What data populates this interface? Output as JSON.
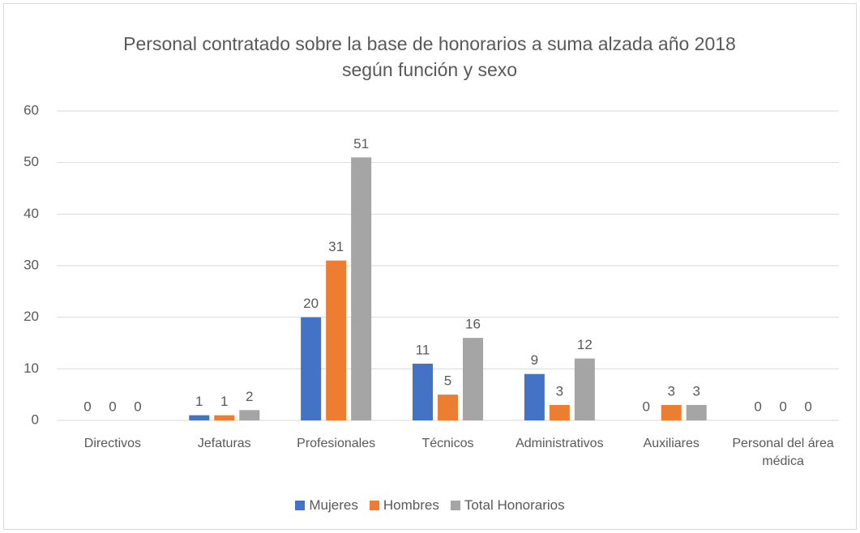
{
  "chart_data": {
    "type": "bar",
    "title": "Personal contratado sobre la base de honorarios a suma alzada año 2018 según función y sexo",
    "categories": [
      "Directivos",
      "Jefaturas",
      "Profesionales",
      "Técnicos",
      "Administrativos",
      "Auxiliares",
      "Personal del área médica"
    ],
    "series": [
      {
        "name": "Mujeres",
        "color": "#4472c4",
        "values": [
          0,
          1,
          20,
          11,
          9,
          0,
          0
        ]
      },
      {
        "name": "Hombres",
        "color": "#ed7d31",
        "values": [
          0,
          1,
          31,
          5,
          3,
          3,
          0
        ]
      },
      {
        "name": "Total Honorarios",
        "color": "#a5a5a5",
        "values": [
          0,
          2,
          51,
          16,
          12,
          3,
          0
        ]
      }
    ],
    "ylim": [
      0,
      60
    ],
    "yticks": [
      0,
      10,
      20,
      30,
      40,
      50,
      60
    ],
    "grid": true,
    "legend": "bottom"
  }
}
